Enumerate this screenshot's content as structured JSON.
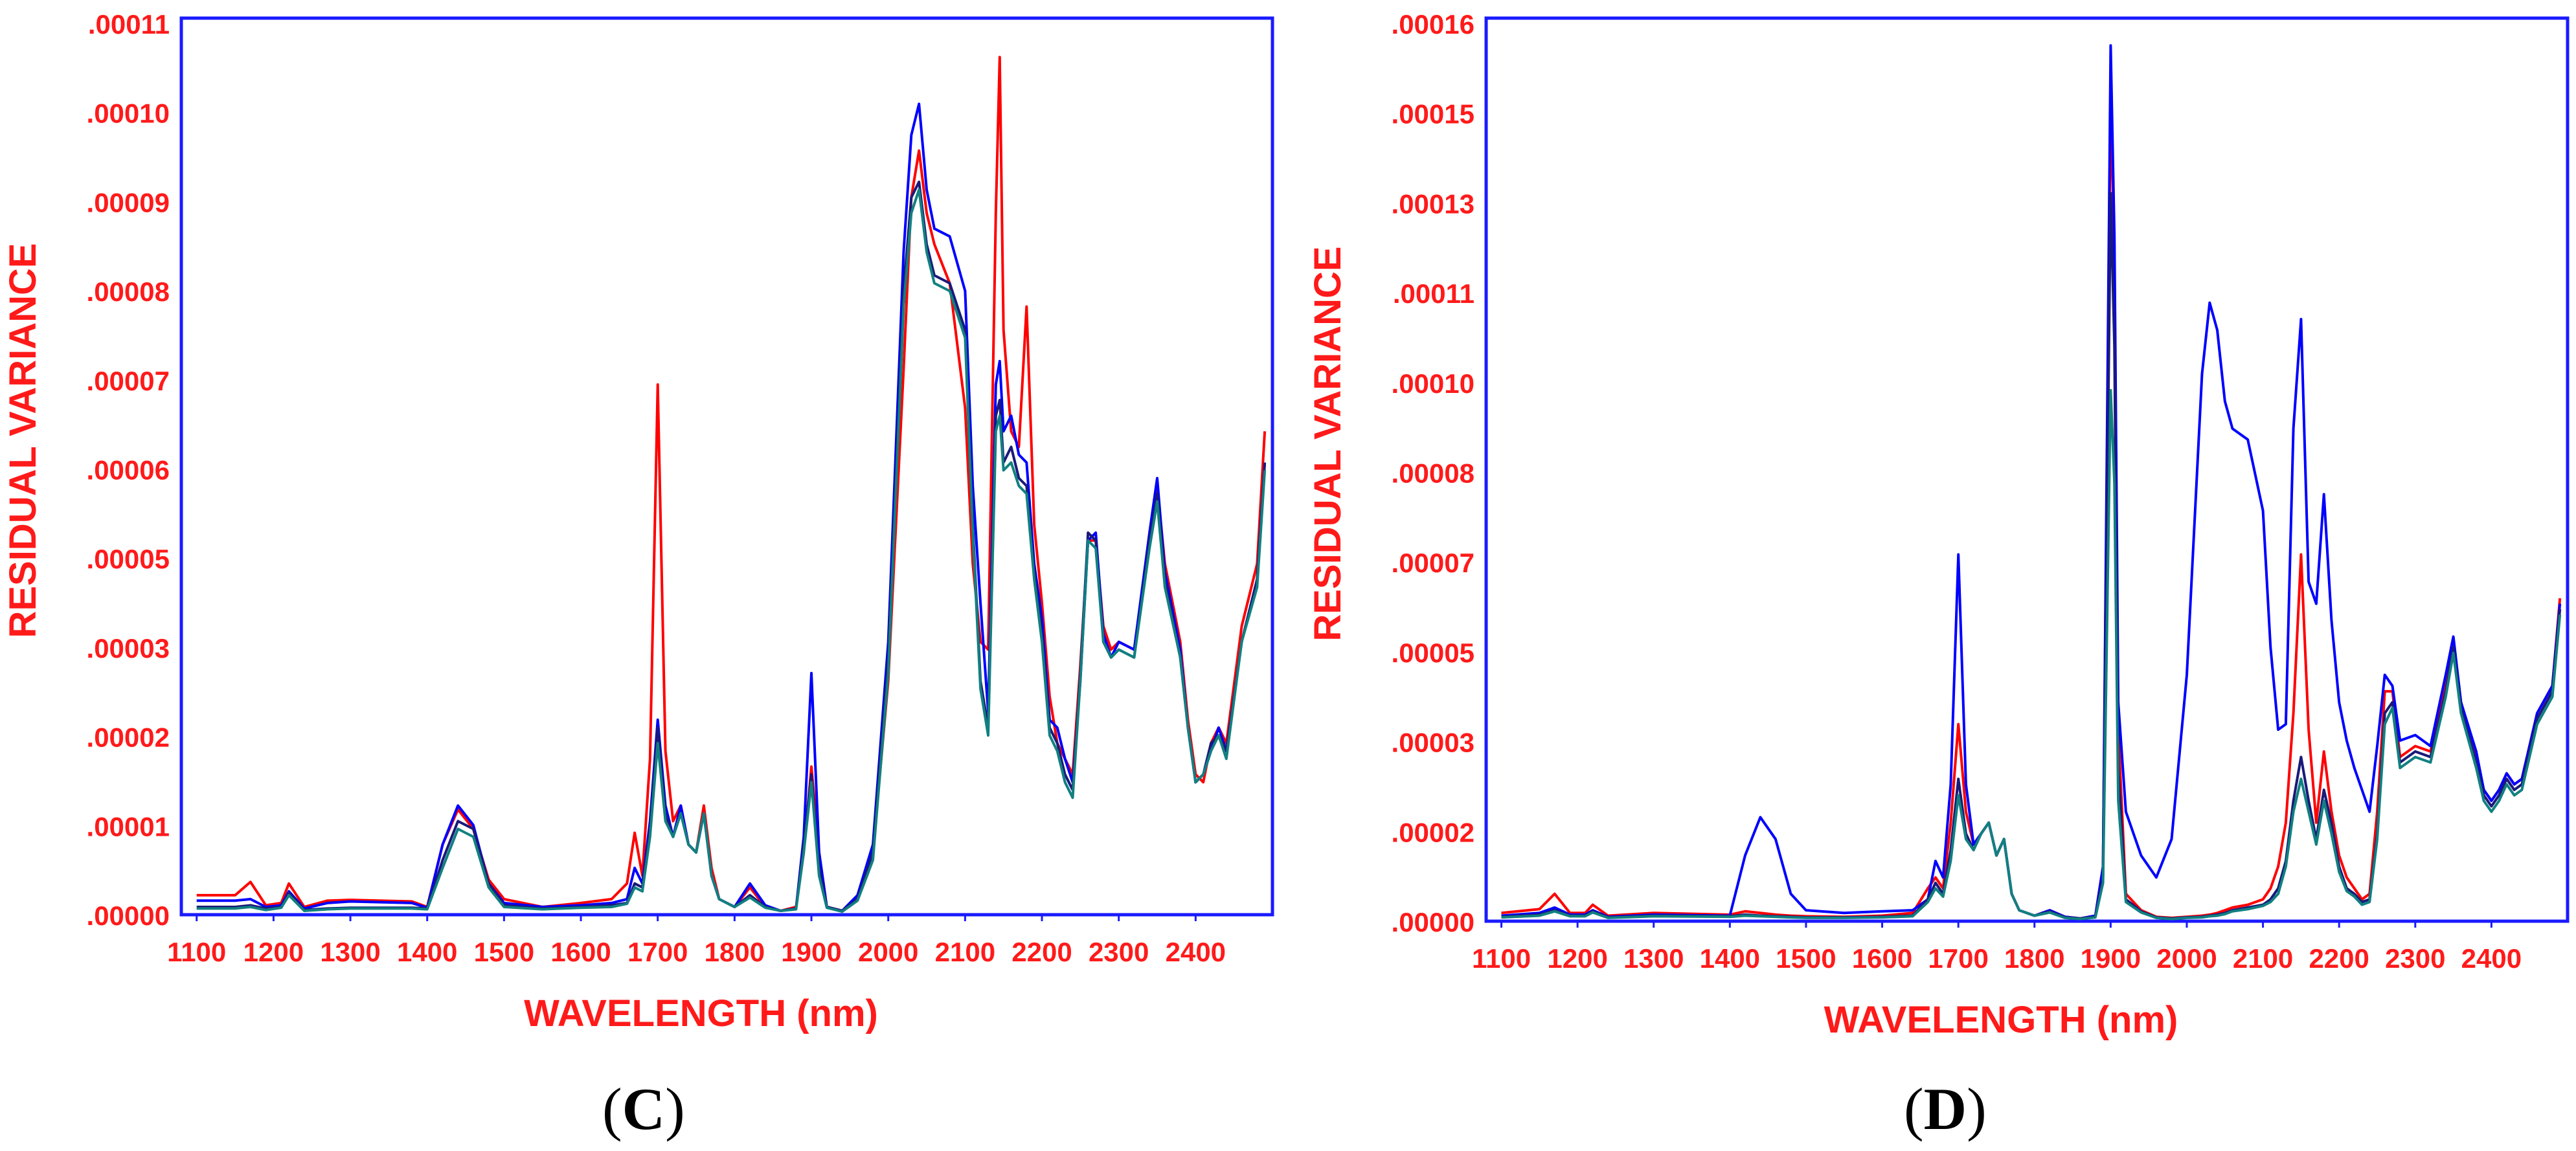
{
  "colors": {
    "frame": "#1a1aff",
    "text": "#ff1a1a",
    "series_red": "#ff0000",
    "series_blue": "#0000ff",
    "series_navy": "#1a1a7a",
    "series_teal": "#118080"
  },
  "chart_data": [
    {
      "panel": "C",
      "type": "line",
      "xlabel": "WAVELENGTH (nm)",
      "ylabel": "RESIDUAL  VARIANCE",
      "xlim": [
        1080,
        2500
      ],
      "ylim": [
        0,
        0.000115
      ],
      "x_ticks": [
        "1100",
        "1200",
        "1300",
        "1400",
        "1500",
        "1600",
        "1700",
        "1800",
        "1900",
        "2000",
        "2100",
        "2200",
        "2300",
        "2400"
      ],
      "y_ticks": [
        ".00000",
        ".00001",
        ".00002",
        ".00003",
        ".00005",
        ".00006",
        ".00007",
        ".00008",
        ".00009",
        ".00010",
        ".00011"
      ],
      "x_points": [
        1100,
        1150,
        1170,
        1190,
        1210,
        1220,
        1240,
        1270,
        1300,
        1380,
        1400,
        1420,
        1440,
        1460,
        1480,
        1500,
        1550,
        1600,
        1640,
        1660,
        1670,
        1680,
        1690,
        1700,
        1710,
        1720,
        1730,
        1740,
        1750,
        1760,
        1770,
        1780,
        1800,
        1820,
        1840,
        1860,
        1880,
        1890,
        1900,
        1910,
        1920,
        1940,
        1960,
        1980,
        2000,
        2020,
        2030,
        2040,
        2050,
        2060,
        2080,
        2100,
        2110,
        2120,
        2130,
        2140,
        2145,
        2150,
        2160,
        2170,
        2180,
        2190,
        2200,
        2210,
        2220,
        2230,
        2240,
        2250,
        2260,
        2270,
        2280,
        2290,
        2300,
        2320,
        2340,
        2350,
        2360,
        2380,
        2390,
        2400,
        2410,
        2420,
        2430,
        2440,
        2460,
        2480,
        2490
      ],
      "series": [
        {
          "color_key": "series_red",
          "values": [
            2.5e-06,
            2.5e-06,
            4.2e-06,
            1.2e-06,
            1.5e-06,
            4e-06,
            1e-06,
            1.8e-06,
            1.9e-06,
            1.7e-06,
            1e-06,
            9e-06,
            1.35e-05,
            1.1e-05,
            4.5e-06,
            2e-06,
            1e-06,
            1.5e-06,
            2e-06,
            4e-06,
            1.05e-05,
            5e-06,
            2e-05,
            6.8e-05,
            2.1e-05,
            1.2e-05,
            1.4e-05,
            9e-06,
            8e-06,
            1.4e-05,
            6e-06,
            2e-06,
            1e-06,
            3.5e-06,
            1e-06,
            5e-07,
            1e-06,
            8e-06,
            1.9e-05,
            8e-06,
            1e-06,
            5e-07,
            2e-06,
            8e-06,
            3e-05,
            7e-05,
            9.2e-05,
            9.8e-05,
            9e-05,
            8.6e-05,
            8.1e-05,
            6.5e-05,
            4.5e-05,
            3.5e-05,
            3.4e-05,
            9e-05,
            0.00011,
            7.5e-05,
            6.2e-05,
            6e-05,
            7.8e-05,
            5e-05,
            4e-05,
            2.8e-05,
            2.2e-05,
            2e-05,
            1.8e-05,
            3.2e-05,
            4.8e-05,
            4.8e-05,
            3.7e-05,
            3.4e-05,
            3.5e-05,
            3.4e-05,
            4.8e-05,
            5.5e-05,
            4.5e-05,
            3.5e-05,
            2.5e-05,
            1.8e-05,
            1.7e-05,
            2.2e-05,
            2.4e-05,
            2.2e-05,
            3.7e-05,
            4.5e-05,
            6.2e-05
          ]
        },
        {
          "color_key": "series_blue",
          "values": [
            1.8e-06,
            1.8e-06,
            2e-06,
            1e-06,
            1.2e-06,
            3e-06,
            8e-07,
            1.5e-06,
            1.7e-06,
            1.5e-06,
            9e-07,
            9e-06,
            1.4e-05,
            1.15e-05,
            4e-06,
            1.5e-06,
            1e-06,
            1.2e-06,
            1.5e-06,
            2e-06,
            6e-06,
            4e-06,
            1.2e-05,
            2.5e-05,
            1.4e-05,
            1e-05,
            1.4e-05,
            9e-06,
            8e-06,
            1.3e-05,
            5e-06,
            2e-06,
            1e-06,
            4e-06,
            1.2e-06,
            5e-07,
            8e-07,
            1e-05,
            3.1e-05,
            8e-06,
            1e-06,
            5e-07,
            2.5e-06,
            9e-06,
            3.5e-05,
            8.5e-05,
            0.0001,
            0.000104,
            9.3e-05,
            8.8e-05,
            8.7e-05,
            8e-05,
            5.5e-05,
            4e-05,
            2.6e-05,
            6.8e-05,
            7.1e-05,
            6.2e-05,
            6.4e-05,
            5.9e-05,
            5.8e-05,
            4.5e-05,
            3.8e-05,
            2.5e-05,
            2.4e-05,
            2e-05,
            1.7e-05,
            3e-05,
            4.8e-05,
            4.9e-05,
            3.6e-05,
            3.3e-05,
            3.5e-05,
            3.4e-05,
            4.9e-05,
            5.6e-05,
            4.4e-05,
            3.4e-05,
            2.4e-05,
            1.7e-05,
            1.8e-05,
            2.1e-05,
            2.4e-05,
            2.1e-05,
            3.5e-05,
            4.3e-05,
            5.8e-05
          ]
        },
        {
          "color_key": "series_navy",
          "values": [
            1e-06,
            1e-06,
            1.2e-06,
            8e-07,
            1e-06,
            2.8e-06,
            6e-07,
            8e-07,
            9e-07,
            9e-07,
            8e-07,
            7e-06,
            1.2e-05,
            1.1e-05,
            4e-06,
            1.2e-06,
            8e-07,
            1e-06,
            1.2e-06,
            1.5e-06,
            4e-06,
            3.5e-06,
            1.1e-05,
            2.4e-05,
            1.3e-05,
            1e-05,
            1.3e-05,
            9e-06,
            8e-06,
            1.3e-05,
            5e-06,
            2e-06,
            1e-06,
            2.5e-06,
            1e-06,
            5e-07,
            8e-07,
            9e-06,
            1.8e-05,
            6e-06,
            1e-06,
            5e-07,
            2e-06,
            8e-06,
            3.3e-05,
            8e-05,
            9.2e-05,
            9.4e-05,
            8.6e-05,
            8.2e-05,
            8.1e-05,
            7.5e-05,
            5e-05,
            3e-05,
            2.4e-05,
            6.4e-05,
            6.6e-05,
            5.8e-05,
            6e-05,
            5.6e-05,
            5.5e-05,
            4.4e-05,
            3.6e-05,
            2.4e-05,
            2.2e-05,
            1.8e-05,
            1.6e-05,
            3.1e-05,
            4.9e-05,
            4.8e-05,
            3.5e-05,
            3.3e-05,
            3.4e-05,
            3.3e-05,
            4.8e-05,
            5.4e-05,
            4.3e-05,
            3.3e-05,
            2.4e-05,
            1.7e-05,
            1.8e-05,
            2.2e-05,
            2.3e-05,
            2.1e-05,
            3.5e-05,
            4.3e-05,
            5.8e-05
          ]
        },
        {
          "color_key": "series_teal",
          "values": [
            8e-07,
            8e-07,
            1e-06,
            6e-07,
            9e-07,
            2.5e-06,
            5e-07,
            7e-07,
            8e-07,
            8e-07,
            7e-07,
            6e-06,
            1.1e-05,
            1e-05,
            3.5e-06,
            1e-06,
            7e-07,
            9e-07,
            1e-06,
            1.4e-06,
            3.5e-06,
            3e-06,
            1e-05,
            2.2e-05,
            1.2e-05,
            1e-05,
            1.3e-05,
            9e-06,
            8e-06,
            1.3e-05,
            5e-06,
            2e-06,
            1e-06,
            2.2e-06,
            9e-07,
            5e-07,
            7e-07,
            8e-06,
            1.7e-05,
            5e-06,
            9e-07,
            4e-07,
            1.8e-06,
            7e-06,
            3.1e-05,
            7.8e-05,
            9e-05,
            9.3e-05,
            8.5e-05,
            8.1e-05,
            8e-05,
            7.4e-05,
            4.9e-05,
            2.9e-05,
            2.3e-05,
            6.2e-05,
            6.4e-05,
            5.7e-05,
            5.8e-05,
            5.5e-05,
            5.4e-05,
            4.3e-05,
            3.5e-05,
            2.3e-05,
            2.1e-05,
            1.7e-05,
            1.5e-05,
            3e-05,
            4.8e-05,
            4.7e-05,
            3.5e-05,
            3.3e-05,
            3.4e-05,
            3.3e-05,
            4.7e-05,
            5.3e-05,
            4.2e-05,
            3.3e-05,
            2.4e-05,
            1.7e-05,
            1.8e-05,
            2.1e-05,
            2.3e-05,
            2e-05,
            3.5e-05,
            4.2e-05,
            5.7e-05
          ]
        }
      ],
      "caption": "C"
    },
    {
      "panel": "D",
      "type": "line",
      "xlabel": "WAVELENGTH (nm)",
      "ylabel": "RESIDUAL  VARIANCE",
      "xlim": [
        1080,
        2500
      ],
      "ylim": [
        0,
        0.000165
      ],
      "x_ticks": [
        "1100",
        "1200",
        "1300",
        "1400",
        "1500",
        "1600",
        "1700",
        "1800",
        "1900",
        "2000",
        "2100",
        "2200",
        "2300",
        "2400"
      ],
      "y_ticks": [
        ".00000",
        ".00002",
        ".00003",
        ".00005",
        ".00007",
        ".00008",
        ".00010",
        ".00011",
        ".00013",
        ".00015",
        ".00016"
      ],
      "x_points": [
        1100,
        1150,
        1170,
        1190,
        1210,
        1220,
        1240,
        1300,
        1400,
        1420,
        1440,
        1460,
        1480,
        1500,
        1550,
        1600,
        1640,
        1660,
        1670,
        1680,
        1690,
        1700,
        1710,
        1720,
        1730,
        1740,
        1750,
        1760,
        1770,
        1780,
        1800,
        1820,
        1840,
        1860,
        1880,
        1890,
        1900,
        1905,
        1910,
        1920,
        1940,
        1960,
        1980,
        2000,
        2020,
        2030,
        2040,
        2050,
        2060,
        2080,
        2100,
        2110,
        2120,
        2130,
        2140,
        2150,
        2160,
        2170,
        2180,
        2190,
        2200,
        2210,
        2220,
        2230,
        2240,
        2250,
        2260,
        2270,
        2280,
        2300,
        2320,
        2340,
        2350,
        2360,
        2380,
        2390,
        2400,
        2410,
        2420,
        2430,
        2440,
        2460,
        2480,
        2490
      ],
      "series": [
        {
          "color_key": "series_red",
          "values": [
            1.5e-06,
            2.2e-06,
            5e-06,
            1.5e-06,
            1.5e-06,
            3e-06,
            1e-06,
            1.5e-06,
            1.2e-06,
            1.8e-06,
            1.5e-06,
            1.2e-06,
            1e-06,
            9e-07,
            8e-07,
            1e-06,
            1.5e-06,
            6e-06,
            8e-06,
            6e-06,
            1.8e-05,
            3.6e-05,
            2e-05,
            1.4e-05,
            1.6e-05,
            1.8e-05,
            1.2e-05,
            1.5e-05,
            5e-06,
            2e-06,
            1e-06,
            2e-06,
            8e-07,
            5e-07,
            1e-06,
            1e-05,
            0.000151,
            0.00012,
            3.5e-05,
            5e-06,
            2e-06,
            8e-07,
            6e-07,
            8e-07,
            1e-06,
            1.2e-06,
            1.5e-06,
            2e-06,
            2.5e-06,
            3e-06,
            4e-06,
            6e-06,
            1e-05,
            1.8e-05,
            3.8e-05,
            6.7e-05,
            3.5e-05,
            1.8e-05,
            3.1e-05,
            2e-05,
            1.2e-05,
            8e-06,
            6e-06,
            4e-06,
            5e-06,
            2e-05,
            4.2e-05,
            4.2e-05,
            3e-05,
            3.2e-05,
            3.1e-05,
            4.3e-05,
            5.1e-05,
            4e-05,
            3e-05,
            2.4e-05,
            2.2e-05,
            2.4e-05,
            2.7e-05,
            2.5e-05,
            2.6e-05,
            3.8e-05,
            4.3e-05,
            5.9e-05
          ]
        },
        {
          "color_key": "series_blue",
          "values": [
            1e-06,
            1.5e-06,
            2.5e-06,
            1.2e-06,
            1.2e-06,
            2e-06,
            8e-07,
            1.2e-06,
            1e-06,
            1.2e-05,
            1.9e-05,
            1.5e-05,
            5e-06,
            2e-06,
            1.5e-06,
            1.8e-06,
            2e-06,
            4e-06,
            1.1e-05,
            8e-06,
            2.5e-05,
            6.7e-05,
            2.5e-05,
            1.4e-05,
            1.6e-05,
            1.8e-05,
            1.2e-05,
            1.5e-05,
            5e-06,
            2e-06,
            1e-06,
            2e-06,
            8e-07,
            5e-07,
            1e-06,
            1e-05,
            0.00016,
            0.000125,
            4e-05,
            2e-05,
            1.2e-05,
            8e-06,
            1.5e-05,
            4.5e-05,
            0.0001,
            0.000113,
            0.000108,
            9.5e-05,
            9e-05,
            8.8e-05,
            7.5e-05,
            5e-05,
            3.5e-05,
            3.6e-05,
            9e-05,
            0.00011,
            6.2e-05,
            5.8e-05,
            7.8e-05,
            5.5e-05,
            4e-05,
            3.3e-05,
            2.8e-05,
            2.4e-05,
            2e-05,
            3.2e-05,
            4.5e-05,
            4.3e-05,
            3.3e-05,
            3.4e-05,
            3.2e-05,
            4.5e-05,
            5.2e-05,
            4e-05,
            3.1e-05,
            2.4e-05,
            2.2e-05,
            2.4e-05,
            2.7e-05,
            2.5e-05,
            2.6e-05,
            3.8e-05,
            4.3e-05,
            5.8e-05
          ]
        },
        {
          "color_key": "series_navy",
          "values": [
            8e-07,
            1.2e-06,
            2e-06,
            1e-06,
            1e-06,
            1.8e-06,
            7e-07,
            1e-06,
            9e-07,
            1.2e-06,
            1e-06,
            9e-07,
            8e-07,
            7e-07,
            7e-07,
            8e-07,
            1e-06,
            4e-06,
            7e-06,
            5e-06,
            1.3e-05,
            2.6e-05,
            1.6e-05,
            1.3e-05,
            1.6e-05,
            1.8e-05,
            1.2e-05,
            1.5e-05,
            5e-06,
            2e-06,
            1e-06,
            1.8e-06,
            7e-07,
            5e-07,
            8e-07,
            8e-06,
            0.000133,
            0.000105,
            2.8e-05,
            4e-06,
            1.8e-06,
            7e-07,
            5e-07,
            7e-07,
            8e-07,
            1e-06,
            1.2e-06,
            1.5e-06,
            2e-06,
            2.5e-06,
            3e-06,
            4e-06,
            6e-06,
            1.1e-05,
            2.2e-05,
            3e-05,
            2.2e-05,
            1.5e-05,
            2.4e-05,
            1.8e-05,
            1e-05,
            6e-06,
            5e-06,
            3.5e-06,
            4e-06,
            1.6e-05,
            3.8e-05,
            4e-05,
            2.9e-05,
            3.1e-05,
            3e-05,
            4.2e-05,
            5e-05,
            3.9e-05,
            2.9e-05,
            2.3e-05,
            2.1e-05,
            2.3e-05,
            2.6e-05,
            2.4e-05,
            2.5e-05,
            3.7e-05,
            4.2e-05,
            5.7e-05
          ]
        },
        {
          "color_key": "series_teal",
          "values": [
            7e-07,
            1e-06,
            1.8e-06,
            9e-07,
            9e-07,
            1.6e-06,
            6e-07,
            9e-07,
            8e-07,
            1e-06,
            9e-07,
            8e-07,
            7e-07,
            6e-07,
            6e-07,
            7e-07,
            9e-07,
            3.5e-06,
            6e-06,
            4.5e-06,
            1.1e-05,
            2.3e-05,
            1.5e-05,
            1.3e-05,
            1.6e-05,
            1.8e-05,
            1.2e-05,
            1.5e-05,
            5e-06,
            2e-06,
            1e-06,
            1.6e-06,
            6e-07,
            4e-07,
            7e-07,
            7e-06,
            9.7e-05,
            8e-05,
            2.2e-05,
            3.5e-06,
            1.6e-06,
            6e-07,
            4e-07,
            6e-07,
            7e-07,
            9e-07,
            1e-06,
            1.3e-06,
            1.8e-06,
            2.2e-06,
            2.8e-06,
            3.5e-06,
            5e-06,
            1e-05,
            2e-05,
            2.6e-05,
            2e-05,
            1.4e-05,
            2.2e-05,
            1.6e-05,
            9e-06,
            5.5e-06,
            4.5e-06,
            3e-06,
            3.5e-06,
            1.5e-05,
            3.6e-05,
            3.9e-05,
            2.8e-05,
            3e-05,
            2.9e-05,
            4.1e-05,
            4.9e-05,
            3.8e-05,
            2.8e-05,
            2.2e-05,
            2e-05,
            2.2e-05,
            2.5e-05,
            2.3e-05,
            2.4e-05,
            3.6e-05,
            4.1e-05,
            5.6e-05
          ]
        }
      ],
      "caption": "D"
    }
  ]
}
